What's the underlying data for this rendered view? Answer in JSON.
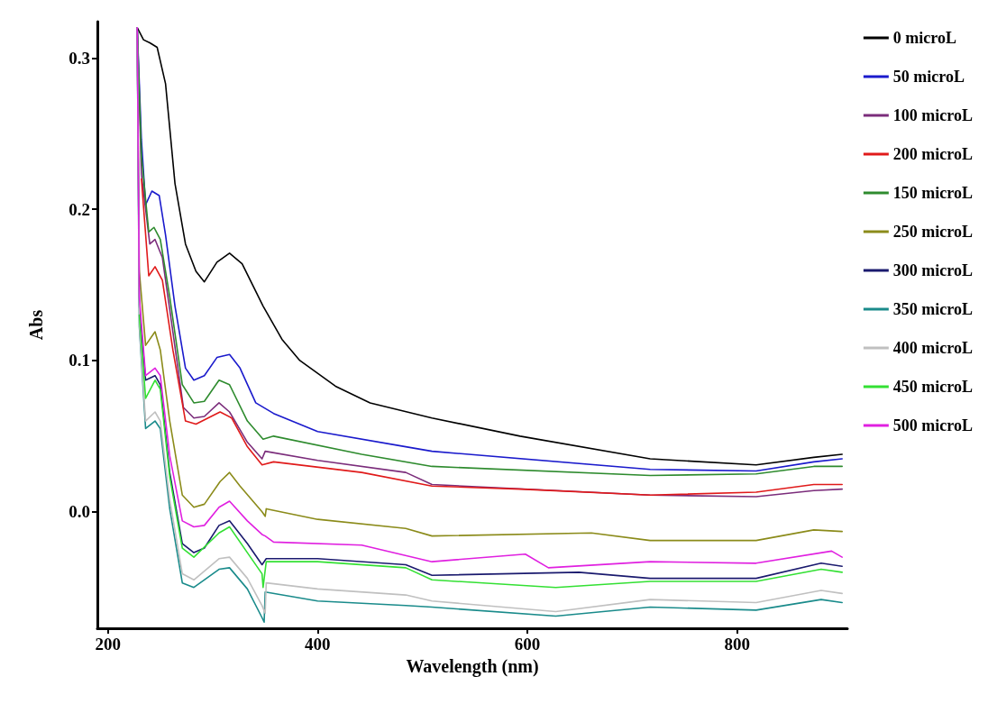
{
  "chart_data": {
    "type": "line",
    "xlabel": "Wavelength (nm)",
    "ylabel": "Abs",
    "xlim": [
      190,
      905
    ],
    "ylim": [
      -0.077,
      0.324
    ],
    "xticks": [
      200,
      400,
      600,
      800
    ],
    "yticks": [
      {
        "value": 0,
        "label": "0.0"
      },
      0.1,
      0.2,
      0.3
    ],
    "grid": false,
    "legend": "right",
    "marker": "none",
    "line_style": "solid",
    "series": [
      {
        "name": "0 microL",
        "color": "#000000",
        "x": [
          228,
          234,
          240,
          247,
          255,
          264,
          274,
          284,
          292,
          304,
          316,
          328,
          348,
          366,
          383,
          417,
          450,
          509,
          593,
          717,
          818,
          873,
          900
        ],
        "values": [
          0.32,
          0.312,
          0.31,
          0.307,
          0.283,
          0.217,
          0.177,
          0.159,
          0.152,
          0.165,
          0.171,
          0.164,
          0.136,
          0.114,
          0.1,
          0.083,
          0.072,
          0.062,
          0.05,
          0.035,
          0.031,
          0.036,
          0.038
        ]
      },
      {
        "name": "50 microL",
        "color": "#1a1acc",
        "x": [
          228,
          232,
          236,
          242,
          249,
          255,
          264,
          274,
          282,
          292,
          304,
          316,
          326,
          341,
          358,
          400,
          484,
          509,
          717,
          818,
          873,
          900
        ],
        "values": [
          0.32,
          0.246,
          0.203,
          0.212,
          0.209,
          0.183,
          0.136,
          0.095,
          0.087,
          0.09,
          0.102,
          0.104,
          0.095,
          0.072,
          0.065,
          0.053,
          0.043,
          0.04,
          0.028,
          0.027,
          0.033,
          0.035
        ]
      },
      {
        "name": "100 microL",
        "color": "#7b2d7b",
        "x": [
          228,
          232,
          240,
          245,
          252,
          262,
          272,
          282,
          292,
          306,
          316,
          333,
          347,
          350,
          400,
          484,
          509,
          717,
          818,
          873,
          900
        ],
        "values": [
          0.32,
          0.223,
          0.177,
          0.18,
          0.168,
          0.119,
          0.069,
          0.062,
          0.063,
          0.072,
          0.066,
          0.046,
          0.035,
          0.04,
          0.034,
          0.026,
          0.018,
          0.011,
          0.01,
          0.014,
          0.015
        ]
      },
      {
        "name": "200 microL",
        "color": "#e01a1a",
        "x": [
          232,
          239,
          245,
          252,
          262,
          274,
          284,
          307,
          318,
          333,
          347,
          358,
          442,
          509,
          593,
          717,
          818,
          873,
          900
        ],
        "values": [
          0.22,
          0.156,
          0.162,
          0.153,
          0.107,
          0.06,
          0.058,
          0.066,
          0.062,
          0.043,
          0.031,
          0.033,
          0.026,
          0.017,
          0.015,
          0.011,
          0.013,
          0.018,
          0.018
        ]
      },
      {
        "name": "150 microL",
        "color": "#2e8b2e",
        "x": [
          228,
          232,
          239,
          244,
          250,
          259,
          271,
          282,
          292,
          306,
          316,
          333,
          348,
          358,
          442,
          509,
          717,
          818,
          873,
          900
        ],
        "values": [
          0.32,
          0.235,
          0.185,
          0.188,
          0.18,
          0.142,
          0.084,
          0.072,
          0.073,
          0.087,
          0.084,
          0.06,
          0.048,
          0.05,
          0.038,
          0.03,
          0.024,
          0.025,
          0.03,
          0.03
        ]
      },
      {
        "name": "250 microL",
        "color": "#8b8b1a",
        "x": [
          228,
          230,
          236,
          245,
          250,
          259,
          271,
          282,
          292,
          307,
          316,
          326,
          347,
          350,
          351,
          400,
          484,
          509,
          661,
          717,
          818,
          873,
          900
        ],
        "values": [
          0.32,
          0.159,
          0.11,
          0.119,
          0.107,
          0.06,
          0.011,
          0.003,
          0.005,
          0.02,
          0.026,
          0.017,
          0.0,
          -0.003,
          0.002,
          -0.005,
          -0.011,
          -0.016,
          -0.014,
          -0.019,
          -0.019,
          -0.012,
          -0.013
        ]
      },
      {
        "name": "300 microL",
        "color": "#1a1a6e",
        "x": [
          228,
          230,
          236,
          245,
          250,
          259,
          271,
          282,
          292,
          306,
          316,
          333,
          347,
          351,
          400,
          484,
          509,
          649,
          717,
          818,
          880,
          900
        ],
        "values": [
          0.32,
          0.136,
          0.087,
          0.09,
          0.084,
          0.026,
          -0.021,
          -0.027,
          -0.024,
          -0.009,
          -0.006,
          -0.021,
          -0.035,
          -0.031,
          -0.031,
          -0.035,
          -0.042,
          -0.04,
          -0.044,
          -0.044,
          -0.034,
          -0.036
        ]
      },
      {
        "name": "350 microL",
        "color": "#1a8b8b",
        "x": [
          228,
          230,
          236,
          245,
          250,
          259,
          271,
          282,
          306,
          316,
          333,
          347,
          349,
          350,
          400,
          484,
          509,
          627,
          717,
          818,
          880,
          900
        ],
        "values": [
          0.32,
          0.122,
          0.055,
          0.06,
          0.055,
          0.002,
          -0.047,
          -0.05,
          -0.038,
          -0.037,
          -0.051,
          -0.07,
          -0.073,
          -0.053,
          -0.059,
          -0.062,
          -0.063,
          -0.069,
          -0.063,
          -0.065,
          -0.058,
          -0.06
        ]
      },
      {
        "name": "400 microL",
        "color": "#c0c0c0",
        "x": [
          228,
          230,
          236,
          245,
          250,
          259,
          271,
          282,
          306,
          316,
          333,
          347,
          350,
          351,
          400,
          484,
          509,
          627,
          717,
          818,
          880,
          900
        ],
        "values": [
          0.32,
          0.124,
          0.06,
          0.066,
          0.06,
          0.008,
          -0.041,
          -0.045,
          -0.031,
          -0.03,
          -0.044,
          -0.062,
          -0.067,
          -0.047,
          -0.051,
          -0.055,
          -0.059,
          -0.066,
          -0.058,
          -0.06,
          -0.052,
          -0.054
        ]
      },
      {
        "name": "450 microL",
        "color": "#33e033",
        "x": [
          230,
          236,
          245,
          250,
          259,
          271,
          282,
          306,
          316,
          333,
          347,
          348,
          351,
          400,
          484,
          509,
          627,
          717,
          818,
          880,
          900
        ],
        "values": [
          0.13,
          0.075,
          0.087,
          0.081,
          0.023,
          -0.024,
          -0.03,
          -0.014,
          -0.01,
          -0.027,
          -0.041,
          -0.05,
          -0.033,
          -0.033,
          -0.037,
          -0.045,
          -0.05,
          -0.046,
          -0.046,
          -0.038,
          -0.04
        ]
      },
      {
        "name": "500 microL",
        "color": "#e020e0",
        "x": [
          228,
          230,
          236,
          245,
          250,
          259,
          271,
          282,
          292,
          306,
          316,
          333,
          347,
          350,
          358,
          442,
          509,
          598,
          620,
          717,
          818,
          890,
          900
        ],
        "values": [
          0.32,
          0.142,
          0.09,
          0.095,
          0.09,
          0.037,
          -0.006,
          -0.01,
          -0.009,
          0.003,
          0.007,
          -0.006,
          -0.015,
          -0.016,
          -0.02,
          -0.022,
          -0.033,
          -0.028,
          -0.037,
          -0.033,
          -0.034,
          -0.026,
          -0.03
        ]
      }
    ]
  }
}
